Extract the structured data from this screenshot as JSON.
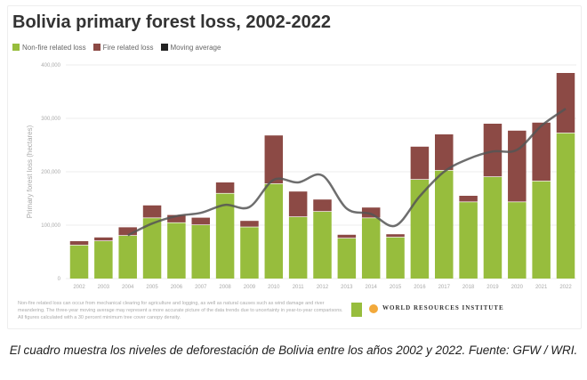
{
  "chart_data": {
    "type": "bar",
    "stacked": true,
    "title": "Bolivia primary forest loss, 2002-2022",
    "ylabel": "Primary forest loss (hectares)",
    "xlabel": "",
    "ylim": [
      0,
      400000
    ],
    "yticks": [
      "0",
      "100,000",
      "200,000",
      "300,000",
      "400,000"
    ],
    "grid": true,
    "legend_position": "top-left",
    "categories": [
      "2002",
      "2003",
      "2004",
      "2005",
      "2006",
      "2007",
      "2008",
      "2009",
      "2010",
      "2011",
      "2012",
      "2013",
      "2014",
      "2015",
      "2016",
      "2017",
      "2018",
      "2019",
      "2020",
      "2021",
      "2022"
    ],
    "series": [
      {
        "name": "Non-fire related loss",
        "color": "#97bd3d",
        "values": [
          62000,
          70000,
          80000,
          113000,
          104000,
          100000,
          159000,
          96000,
          177000,
          115000,
          125000,
          75000,
          113000,
          77000,
          185000,
          202000,
          143000,
          190000,
          143000,
          182000,
          272000
        ]
      },
      {
        "name": "Fire related loss",
        "color": "#8c4a45",
        "values": [
          8000,
          7000,
          16000,
          24000,
          15000,
          14000,
          21000,
          12000,
          91000,
          48000,
          23000,
          7000,
          20000,
          6000,
          62000,
          68000,
          12000,
          100000,
          134000,
          110000,
          113000
        ]
      },
      {
        "name": "Moving average",
        "color": "#555555",
        "type": "line",
        "values": [
          null,
          null,
          81000,
          103000,
          117000,
          123000,
          138000,
          134000,
          185000,
          180000,
          193000,
          131000,
          121000,
          99000,
          154000,
          200000,
          224000,
          238000,
          241000,
          286000,
          318000
        ]
      }
    ]
  },
  "footnote": "Non-fire related loss can occur from mechanical clearing for agriculture and logging, as well as natural causes such as wind damage and river meandering. The three-year moving average may represent a more accurate picture of the data trends due to uncertainty in year-to-year comparisons. All figures calculated with a 30 percent minimum tree cover canopy density.",
  "logos": {
    "gfw": "GLOBAL FOREST WATCH",
    "wri": "WORLD RESOURCES INSTITUTE"
  },
  "caption": "El cuadro muestra los niveles de deforestación de Bolivia entre los años 2002 y 2022. Fuente: GFW / WRI."
}
